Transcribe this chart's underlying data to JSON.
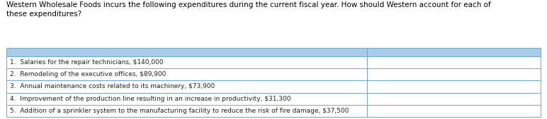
{
  "title_text": "Western Wholesale Foods incurs the following expenditures during the current fiscal year. How should Western account for each of\nthese expenditures?",
  "title_fontsize": 7.5,
  "header_color": "#a8cce8",
  "row_bg": "#ffffff",
  "border_color": "#6aaad4",
  "rows": [
    "1.  Salaries for the repair technicians, $140,000",
    "2.  Remodeling of the executive offices, $89,900",
    "3.  Annual maintenance costs related to its machinery, $73,900",
    "4.  Improvement of the production line resulting in an increase in productivity, $31,300",
    "5.  Addition of a sprinkler system to the manufacturing facility to reduce the risk of fire damage, $37,500"
  ],
  "col_split": 0.675,
  "figsize": [
    7.72,
    1.69
  ],
  "dpi": 100,
  "text_fontsize": 6.5
}
